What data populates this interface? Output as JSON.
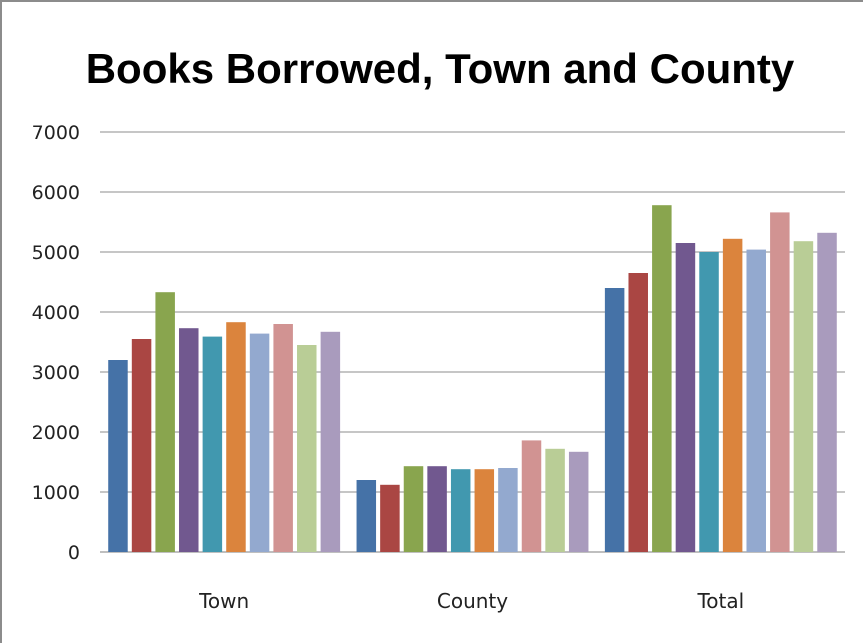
{
  "chart_data": {
    "type": "bar",
    "title": "Books Borrowed, Town and County",
    "xlabel": "",
    "ylabel": "",
    "ylim": [
      0,
      7000
    ],
    "yticks": [
      0,
      1000,
      2000,
      3000,
      4000,
      5000,
      6000,
      7000
    ],
    "grid": true,
    "legend": "none",
    "categories": [
      "Town",
      "County",
      "Total"
    ],
    "series": [
      {
        "values": [
          3200,
          1200,
          4400
        ],
        "color": "#4572a7"
      },
      {
        "values": [
          3550,
          1120,
          4650
        ],
        "color": "#aa4643"
      },
      {
        "values": [
          4330,
          1430,
          5780
        ],
        "color": "#89a54e"
      },
      {
        "values": [
          3730,
          1430,
          5150
        ],
        "color": "#71588f"
      },
      {
        "values": [
          3590,
          1380,
          5000
        ],
        "color": "#4198af"
      },
      {
        "values": [
          3830,
          1380,
          5220
        ],
        "color": "#db843d"
      },
      {
        "values": [
          3640,
          1400,
          5040
        ],
        "color": "#93a9cf"
      },
      {
        "values": [
          3800,
          1860,
          5660
        ],
        "color": "#d19392"
      },
      {
        "values": [
          3450,
          1720,
          5180
        ],
        "color": "#b9cd96"
      },
      {
        "values": [
          3670,
          1670,
          5320
        ],
        "color": "#a99bbd"
      }
    ]
  }
}
